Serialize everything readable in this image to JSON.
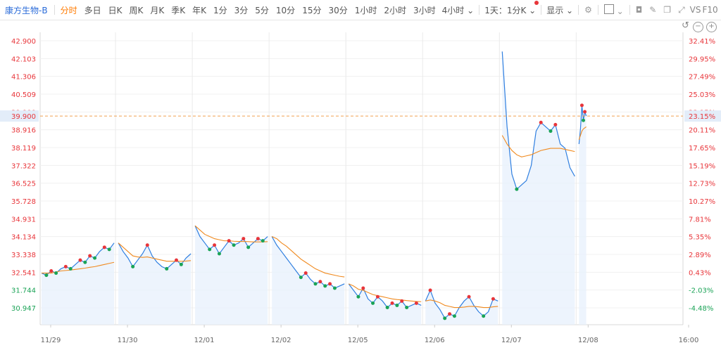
{
  "toolbar": {
    "stock_name": "康方生物-B",
    "timeframes": [
      "分时",
      "多日",
      "日K",
      "周K",
      "月K",
      "季K",
      "年K",
      "1分",
      "3分",
      "5分",
      "10分",
      "15分",
      "30分",
      "1小时",
      "2小时",
      "3小时"
    ],
    "active_timeframe": "分时",
    "dropdown_4h": "4小时",
    "dropdown_interval": "1天：1分K",
    "display_label": "显示",
    "vs_label": "VS",
    "f10_label": "F10",
    "accent_color": "#ff7a00"
  },
  "chart_data": {
    "type": "line",
    "x_labels": [
      "11/29",
      "11/30",
      "12/01",
      "12/02",
      "12/05",
      "12/06",
      "12/07",
      "12/08",
      "16:00"
    ],
    "y_left_ticks": [
      "42.900",
      "42.103",
      "41.306",
      "40.509",
      "39.900",
      "38.916",
      "38.119",
      "37.322",
      "36.525",
      "35.728",
      "34.931",
      "34.134",
      "33.338",
      "32.541",
      "31.744",
      "30.947"
    ],
    "y_right_ticks": [
      "32.41%",
      "29.95%",
      "27.49%",
      "25.03%",
      "23.15%",
      "20.11%",
      "17.65%",
      "15.19%",
      "12.73%",
      "10.27%",
      "7.81%",
      "5.35%",
      "2.89%",
      "0.43%",
      "-2.03%",
      "-4.48%"
    ],
    "ylim": [
      30.2,
      43.4
    ],
    "prev_close": 32.4,
    "current_price": 39.9,
    "current_price_label": "39.900",
    "current_pct_label": "23.15%",
    "colors": {
      "price": "#2f7fe0",
      "avg": "#f08a1f",
      "up": "#e8353a",
      "down": "#1aa356",
      "fill": "#e9f1fc",
      "ref": "#f0a050"
    },
    "series": [
      {
        "day": "11/29",
        "price": [
          32.6,
          32.5,
          32.7,
          32.6,
          32.8,
          32.9,
          32.8,
          33.0,
          33.2,
          33.1,
          33.4,
          33.3,
          33.6,
          33.8,
          33.7,
          34.0
        ],
        "avg": [
          32.6,
          32.6,
          32.6,
          32.65,
          32.7,
          32.72,
          32.74,
          32.77,
          32.8,
          32.83,
          32.87,
          32.9,
          32.95,
          33.0,
          33.05,
          33.1
        ]
      },
      {
        "day": "11/30",
        "price": [
          34.0,
          33.6,
          33.3,
          32.9,
          33.2,
          33.5,
          33.9,
          33.4,
          33.1,
          32.9,
          32.8,
          33.0,
          33.2,
          33.0,
          33.3,
          33.5
        ],
        "avg": [
          34.0,
          33.8,
          33.6,
          33.4,
          33.35,
          33.33,
          33.35,
          33.3,
          33.25,
          33.2,
          33.15,
          33.15,
          33.15,
          33.15,
          33.16,
          33.18
        ]
      },
      {
        "day": "12/01",
        "price": [
          34.8,
          34.3,
          34.0,
          33.7,
          33.9,
          33.5,
          33.8,
          34.1,
          33.9,
          34.0,
          34.2,
          33.8,
          34.0,
          34.2,
          34.1,
          34.3
        ],
        "avg": [
          34.8,
          34.6,
          34.4,
          34.3,
          34.2,
          34.15,
          34.1,
          34.1,
          34.08,
          34.07,
          34.07,
          34.06,
          34.05,
          34.05,
          34.05,
          34.06
        ]
      },
      {
        "day": "12/02",
        "price": [
          34.3,
          33.9,
          33.6,
          33.3,
          33.0,
          32.7,
          32.4,
          32.6,
          32.3,
          32.1,
          32.2,
          32.0,
          32.1,
          31.9,
          32.0,
          32.1
        ],
        "avg": [
          34.3,
          34.2,
          34.0,
          33.85,
          33.65,
          33.45,
          33.25,
          33.1,
          32.95,
          32.8,
          32.7,
          32.6,
          32.55,
          32.5,
          32.45,
          32.42
        ]
      },
      {
        "day": "12/05",
        "price": [
          32.1,
          31.8,
          31.5,
          31.9,
          31.4,
          31.2,
          31.5,
          31.3,
          31.0,
          31.2,
          31.1,
          31.3,
          31.0,
          31.1,
          31.2,
          31.1
        ],
        "avg": [
          32.1,
          32.0,
          31.85,
          31.8,
          31.7,
          31.6,
          31.55,
          31.5,
          31.45,
          31.4,
          31.37,
          31.35,
          31.32,
          31.3,
          31.28,
          31.27
        ]
      },
      {
        "day": "12/06",
        "price": [
          31.3,
          31.8,
          31.2,
          30.9,
          30.5,
          30.7,
          30.6,
          31.0,
          31.3,
          31.5,
          31.1,
          30.8,
          30.6,
          30.8,
          31.4,
          31.3
        ],
        "avg": [
          31.3,
          31.35,
          31.3,
          31.22,
          31.1,
          31.05,
          31.0,
          31.0,
          31.02,
          31.05,
          31.05,
          31.03,
          31.0,
          31.0,
          31.03,
          31.05
        ]
      },
      {
        "day": "12/07",
        "price": [
          42.9,
          39.4,
          37.2,
          36.5,
          36.7,
          36.9,
          37.6,
          39.2,
          39.6,
          39.4,
          39.2,
          39.5,
          38.6,
          38.4,
          37.5,
          37.1
        ],
        "avg": [
          39.0,
          38.6,
          38.3,
          38.1,
          38.0,
          38.05,
          38.1,
          38.2,
          38.3,
          38.35,
          38.4,
          38.4,
          38.4,
          38.35,
          38.3,
          38.25
        ]
      },
      {
        "day": "12/08",
        "price": [
          38.6,
          39.3,
          40.4,
          39.7,
          40.1,
          39.9
        ],
        "avg": [
          38.8,
          39.0,
          39.2,
          39.3,
          39.35,
          39.4
        ]
      }
    ],
    "grid": true
  }
}
